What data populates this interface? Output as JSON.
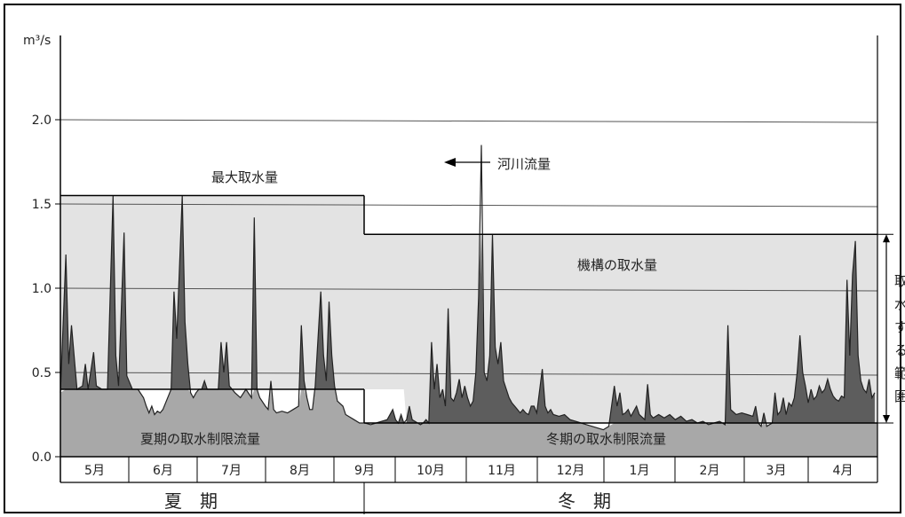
{
  "chart_data": {
    "type": "area",
    "unit_label": "m³/s",
    "y_ticks": [
      "0.0",
      "0.5",
      "1.0",
      "1.5",
      "2.0"
    ],
    "ylim": [
      0,
      2.5
    ],
    "months": [
      "5月",
      "6月",
      "7月",
      "8月",
      "9月",
      "10月",
      "11月",
      "12月",
      "1月",
      "2月",
      "3月",
      "4月"
    ],
    "seasons": {
      "summer": "夏　期",
      "winter": "冬　期"
    },
    "summer_days": [
      0,
      125
    ],
    "winter_days": [
      125,
      365
    ],
    "labels": {
      "max_intake": "最大取水量",
      "river_flow": "河川流量",
      "agency_intake": "機構の取水量",
      "summer_limit": "夏期の取水制限流量",
      "winter_limit": "冬期の取水制限流量",
      "intake_range": "取水する範囲"
    },
    "max_intake": {
      "summer": 1.55,
      "winter": 1.32
    },
    "limit_flow": {
      "summer": 0.4,
      "winter": 0.2
    },
    "river_flow": [
      [
        0,
        0.38
      ],
      [
        2,
        1.2
      ],
      [
        3,
        0.55
      ],
      [
        4,
        0.78
      ],
      [
        6,
        0.4
      ],
      [
        8,
        0.42
      ],
      [
        9,
        0.55
      ],
      [
        10,
        0.4
      ],
      [
        12,
        0.62
      ],
      [
        13,
        0.42
      ],
      [
        15,
        0.4
      ],
      [
        17,
        0.4
      ],
      [
        19,
        1.55
      ],
      [
        20,
        0.6
      ],
      [
        21,
        0.42
      ],
      [
        23,
        1.33
      ],
      [
        24,
        0.48
      ],
      [
        26,
        0.4
      ],
      [
        28,
        0.4
      ],
      [
        30,
        0.35
      ],
      [
        31,
        0.3
      ],
      [
        32,
        0.26
      ],
      [
        33,
        0.3
      ],
      [
        34,
        0.25
      ],
      [
        35,
        0.27
      ],
      [
        36,
        0.26
      ],
      [
        37,
        0.28
      ],
      [
        38,
        0.32
      ],
      [
        40,
        0.4
      ],
      [
        41,
        0.98
      ],
      [
        42,
        0.7
      ],
      [
        44,
        1.55
      ],
      [
        45,
        0.8
      ],
      [
        46,
        0.55
      ],
      [
        47,
        0.38
      ],
      [
        48,
        0.35
      ],
      [
        49,
        0.38
      ],
      [
        50,
        0.4
      ],
      [
        51,
        0.4
      ],
      [
        52,
        0.45
      ],
      [
        53,
        0.4
      ],
      [
        55,
        0.4
      ],
      [
        57,
        0.4
      ],
      [
        58,
        0.68
      ],
      [
        59,
        0.5
      ],
      [
        60,
        0.68
      ],
      [
        61,
        0.42
      ],
      [
        62,
        0.4
      ],
      [
        63,
        0.38
      ],
      [
        65,
        0.35
      ],
      [
        67,
        0.4
      ],
      [
        69,
        0.35
      ],
      [
        70,
        1.42
      ],
      [
        71,
        0.4
      ],
      [
        72,
        0.35
      ],
      [
        74,
        0.3
      ],
      [
        75,
        0.28
      ],
      [
        76,
        0.45
      ],
      [
        77,
        0.28
      ],
      [
        78,
        0.26
      ],
      [
        80,
        0.27
      ],
      [
        82,
        0.26
      ],
      [
        84,
        0.28
      ],
      [
        86,
        0.3
      ],
      [
        87,
        0.78
      ],
      [
        88,
        0.45
      ],
      [
        89,
        0.35
      ],
      [
        90,
        0.28
      ],
      [
        91,
        0.28
      ],
      [
        92,
        0.42
      ],
      [
        94,
        0.98
      ],
      [
        95,
        0.6
      ],
      [
        96,
        0.45
      ],
      [
        97,
        0.92
      ],
      [
        98,
        0.6
      ],
      [
        99,
        0.42
      ],
      [
        100,
        0.33
      ],
      [
        102,
        0.3
      ],
      [
        103,
        0.25
      ],
      [
        104,
        0.24
      ],
      [
        106,
        0.22
      ],
      [
        108,
        0.2
      ],
      [
        110,
        0.2
      ],
      [
        112,
        0.19
      ],
      [
        114,
        0.2
      ],
      [
        116,
        0.21
      ],
      [
        118,
        0.22
      ],
      [
        120,
        0.28
      ],
      [
        121,
        0.22
      ],
      [
        122,
        0.2
      ],
      [
        123,
        0.25
      ],
      [
        124,
        0.2
      ],
      [
        125,
        0.22
      ],
      [
        126,
        0.3
      ],
      [
        127,
        0.22
      ],
      [
        128,
        0.21
      ],
      [
        130,
        0.19
      ],
      [
        131,
        0.2
      ],
      [
        132,
        0.22
      ],
      [
        133,
        0.2
      ],
      [
        134,
        0.68
      ],
      [
        135,
        0.4
      ],
      [
        136,
        0.55
      ],
      [
        137,
        0.35
      ],
      [
        138,
        0.4
      ],
      [
        139,
        0.3
      ],
      [
        140,
        0.88
      ],
      [
        141,
        0.35
      ],
      [
        142,
        0.33
      ],
      [
        143,
        0.38
      ],
      [
        144,
        0.46
      ],
      [
        145,
        0.35
      ],
      [
        146,
        0.42
      ],
      [
        147,
        0.35
      ],
      [
        148,
        0.3
      ],
      [
        149,
        0.33
      ],
      [
        150,
        0.5
      ],
      [
        151,
        0.95
      ],
      [
        152,
        1.85
      ],
      [
        153,
        0.5
      ],
      [
        154,
        0.45
      ],
      [
        155,
        0.6
      ],
      [
        156,
        1.32
      ],
      [
        157,
        0.65
      ],
      [
        158,
        0.55
      ],
      [
        159,
        0.68
      ],
      [
        160,
        0.45
      ],
      [
        161,
        0.4
      ],
      [
        162,
        0.35
      ],
      [
        163,
        0.32
      ],
      [
        164,
        0.3
      ],
      [
        165,
        0.28
      ],
      [
        166,
        0.26
      ],
      [
        167,
        0.28
      ],
      [
        168,
        0.26
      ],
      [
        169,
        0.25
      ],
      [
        170,
        0.3
      ],
      [
        171,
        0.3
      ],
      [
        172,
        0.26
      ],
      [
        174,
        0.52
      ],
      [
        175,
        0.3
      ],
      [
        176,
        0.26
      ],
      [
        177,
        0.28
      ],
      [
        178,
        0.25
      ],
      [
        180,
        0.24
      ],
      [
        182,
        0.25
      ],
      [
        184,
        0.22
      ],
      [
        186,
        0.21
      ],
      [
        188,
        0.2
      ],
      [
        190,
        0.19
      ],
      [
        192,
        0.18
      ],
      [
        194,
        0.17
      ],
      [
        196,
        0.16
      ],
      [
        198,
        0.18
      ],
      [
        200,
        0.42
      ],
      [
        201,
        0.3
      ],
      [
        202,
        0.38
      ],
      [
        203,
        0.25
      ],
      [
        204,
        0.26
      ],
      [
        205,
        0.28
      ],
      [
        206,
        0.24
      ],
      [
        208,
        0.3
      ],
      [
        209,
        0.25
      ],
      [
        211,
        0.22
      ],
      [
        212,
        0.43
      ],
      [
        213,
        0.25
      ],
      [
        214,
        0.23
      ],
      [
        216,
        0.25
      ],
      [
        218,
        0.23
      ],
      [
        220,
        0.25
      ],
      [
        222,
        0.22
      ],
      [
        224,
        0.24
      ],
      [
        226,
        0.21
      ],
      [
        228,
        0.22
      ],
      [
        230,
        0.2
      ],
      [
        232,
        0.21
      ],
      [
        234,
        0.19
      ],
      [
        236,
        0.2
      ],
      [
        238,
        0.21
      ],
      [
        240,
        0.19
      ],
      [
        241,
        0.78
      ],
      [
        242,
        0.28
      ],
      [
        244,
        0.25
      ],
      [
        246,
        0.26
      ],
      [
        248,
        0.25
      ],
      [
        250,
        0.24
      ],
      [
        251,
        0.3
      ],
      [
        252,
        0.2
      ],
      [
        253,
        0.18
      ],
      [
        254,
        0.26
      ],
      [
        255,
        0.18
      ],
      [
        257,
        0.2
      ],
      [
        258,
        0.38
      ],
      [
        259,
        0.25
      ],
      [
        260,
        0.27
      ],
      [
        261,
        0.35
      ],
      [
        262,
        0.25
      ],
      [
        263,
        0.32
      ],
      [
        264,
        0.3
      ],
      [
        265,
        0.35
      ],
      [
        266,
        0.5
      ],
      [
        267,
        0.72
      ],
      [
        268,
        0.5
      ],
      [
        269,
        0.42
      ],
      [
        270,
        0.32
      ],
      [
        271,
        0.4
      ],
      [
        272,
        0.34
      ],
      [
        273,
        0.36
      ],
      [
        274,
        0.42
      ],
      [
        275,
        0.38
      ],
      [
        276,
        0.4
      ],
      [
        277,
        0.46
      ],
      [
        278,
        0.4
      ],
      [
        279,
        0.36
      ],
      [
        280,
        0.34
      ],
      [
        281,
        0.33
      ],
      [
        282,
        0.36
      ],
      [
        283,
        0.35
      ],
      [
        284,
        1.05
      ],
      [
        285,
        0.6
      ],
      [
        286,
        1.08
      ],
      [
        287,
        1.28
      ],
      [
        288,
        0.6
      ],
      [
        289,
        0.45
      ],
      [
        290,
        0.4
      ],
      [
        291,
        0.38
      ],
      [
        292,
        0.46
      ],
      [
        293,
        0.35
      ],
      [
        294,
        0.38
      ]
    ]
  }
}
